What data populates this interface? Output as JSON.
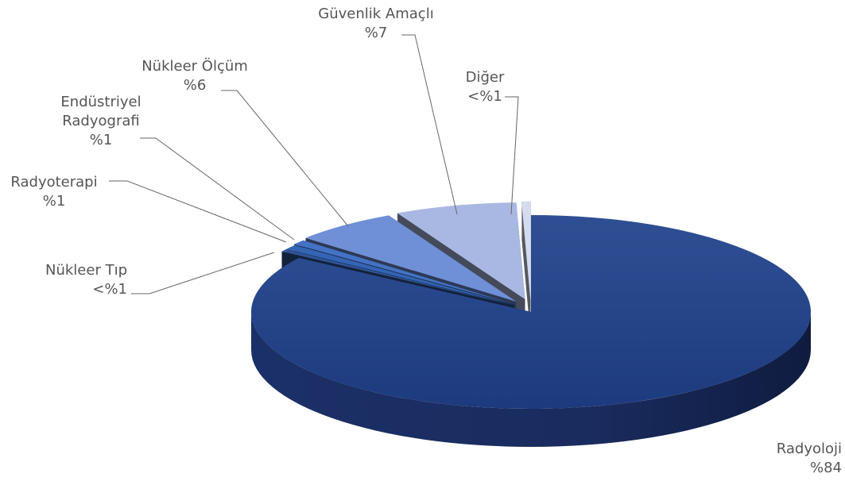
{
  "chart_data": {
    "type": "pie",
    "title": "",
    "slices": [
      {
        "name": "Radyoloji",
        "value": 84,
        "label": "%84",
        "color": "#2B4A8F"
      },
      {
        "name": "Nükleer Tıp",
        "value": 0.4,
        "label": "<%1",
        "color": "#2F5597"
      },
      {
        "name": "Radyoterapi",
        "value": 0.8,
        "label": "%1",
        "color": "#3464B4"
      },
      {
        "name": "Endüstriyel Radyografi",
        "value": 0.8,
        "label": "%1",
        "color": "#4472C4"
      },
      {
        "name": "Nükleer Ölçüm",
        "value": 6,
        "label": "%6",
        "color": "#6F8FD6"
      },
      {
        "name": "Güvenlik Amaçlı",
        "value": 7,
        "label": "%7",
        "color": "#A9B8E2"
      },
      {
        "name": "Diğer",
        "value": 0.5,
        "label": "<%1",
        "color": "#D6DCF0"
      }
    ],
    "legend": "none",
    "style": "3d-exploded"
  }
}
